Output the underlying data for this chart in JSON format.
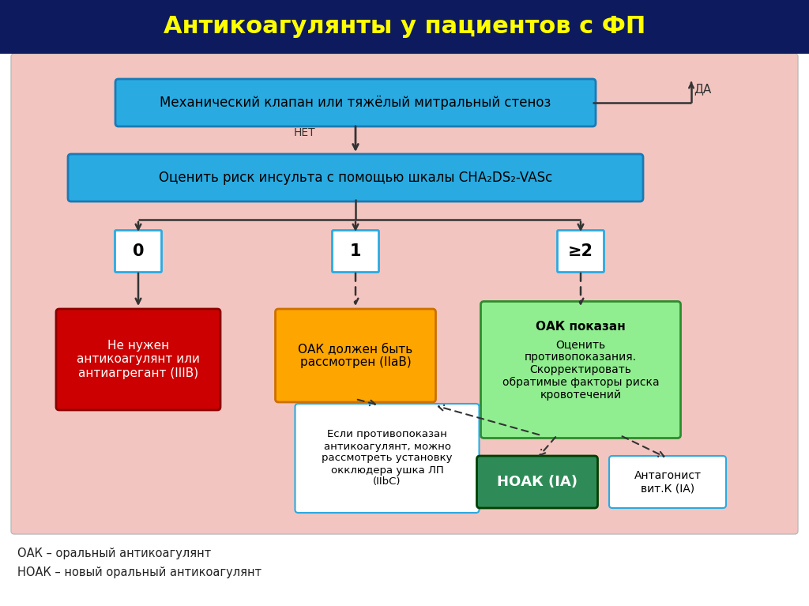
{
  "title": "Антикоагулянты у пациентов с ФП",
  "title_color": "#FFFF00",
  "title_bg": "#0D1B5E",
  "bg_color": "#F2C5C0",
  "outer_bg": "#FFFFFF",
  "footnote1": "ОАК – оральный антикоагулянт",
  "footnote2": "НОАК – новый оральный антикоагулянт",
  "box1_text": "Механический клапан или тяжёлый митральный стеноз",
  "box1_color": "#29ABE2",
  "box1_text_color": "#000000",
  "da_label": "ДА",
  "net_label": "НЕТ",
  "box2_text": "Оценить риск инсульта с помощью шкалы CHA₂DS₂-VASc",
  "box2_color": "#29ABE2",
  "box2_text_color": "#000000",
  "score0_text": "0",
  "score1_text": "1",
  "score2_text": "≥2",
  "score_bg": "#FFFFFF",
  "score_border": "#29ABE2",
  "box_red_text": "Не нужен\nантикоагулянт или\nантиагрегант (IIIB)",
  "box_red_color": "#CC0000",
  "box_red_text_color": "#FFFFFF",
  "box_yellow_text": "ОАК должен быть\nрассмотрен (IIaB)",
  "box_yellow_color": "#FFA500",
  "box_yellow_text_color": "#000000",
  "box_green_line1": "ОАК показан",
  "box_green_line2": "Оценить\nпротивопоказания.\nСкорректировать\nобратимые факторы риска\nкровотечений",
  "box_green_color": "#90EE90",
  "box_green_text_color": "#000000",
  "box_white_text": "Если противопоказан\nантикоагулянт, можно\nрассмотреть установку\nокклюдера ушка ЛП\n(IIbC)",
  "box_white_color": "#FFFFFF",
  "box_white_border": "#29ABE2",
  "box_white_text_color": "#000000",
  "box_noac_text": "НОАК (IA)",
  "box_noac_color": "#2E8B57",
  "box_noac_text_color": "#FFFFFF",
  "box_antag_text": "Антагонист\nвит.К (IA)",
  "box_antag_color": "#FFFFFF",
  "box_antag_border": "#29ABE2",
  "box_antag_text_color": "#000000"
}
